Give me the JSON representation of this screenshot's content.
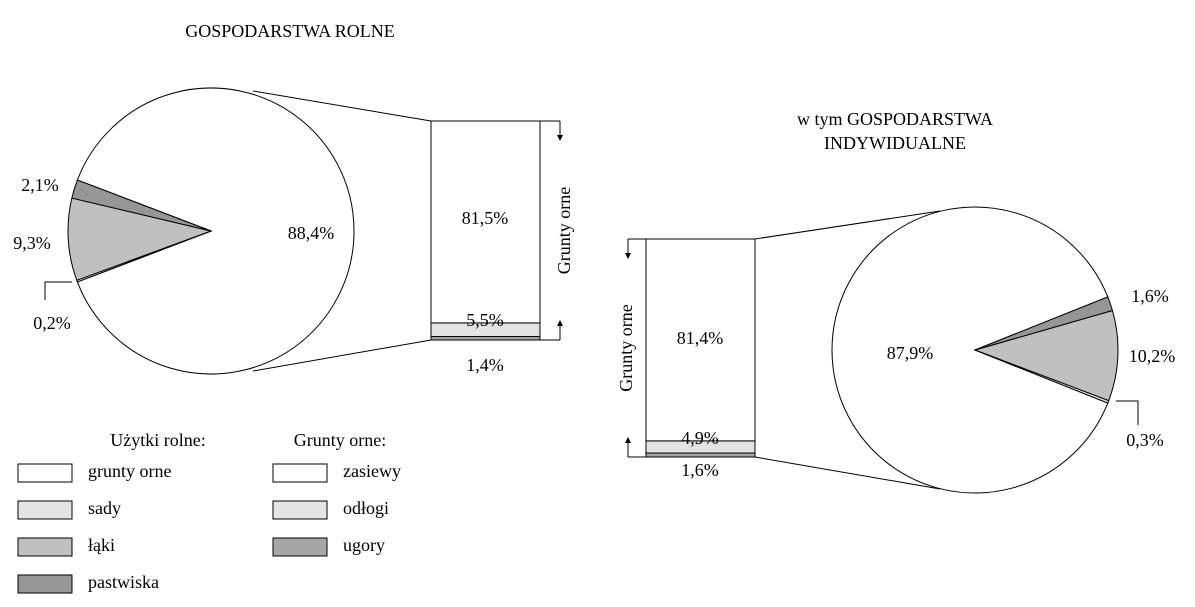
{
  "chart_data": [
    {
      "type": "bar-of-pie",
      "title_lines": [
        "GOSPODARSTWA ROLNE"
      ],
      "values": [
        88.4,
        0.2,
        9.3,
        2.1
      ],
      "value_labels": [
        "88,4%",
        "0,2%",
        "9,3%",
        "2,1%"
      ],
      "bar_values": [
        81.5,
        5.5,
        1.4
      ],
      "bar_value_labels": [
        "81,5%",
        "5,5%",
        "1,4%"
      ],
      "bar_label": "Grunty orne"
    },
    {
      "type": "bar-of-pie",
      "title_lines": [
        "w tym GOSPODARSTWA",
        "INDYWIDUALNE"
      ],
      "values": [
        87.9,
        0.3,
        10.2,
        1.6
      ],
      "value_labels": [
        "87,9%",
        "0,3%",
        "10,2%",
        "1,6%"
      ],
      "bar_values": [
        81.4,
        4.9,
        1.6
      ],
      "bar_value_labels": [
        "81,4%",
        "4,9%",
        "1,6%"
      ],
      "bar_label": "Grunty orne"
    }
  ],
  "legend": {
    "pie": {
      "title": "Użytki rolne:",
      "categories": [
        "grunty orne",
        "sady",
        "łąki",
        "pastwiska"
      ],
      "colors": [
        "#ffffff",
        "#e3e3e3",
        "#c0c0c0",
        "#969696"
      ]
    },
    "bar": {
      "title": "Grunty orne:",
      "categories": [
        "zasiewy",
        "odłogi",
        "ugory"
      ],
      "colors": [
        "#ffffff",
        "#e3e3e3",
        "#a6a6a6"
      ]
    }
  }
}
